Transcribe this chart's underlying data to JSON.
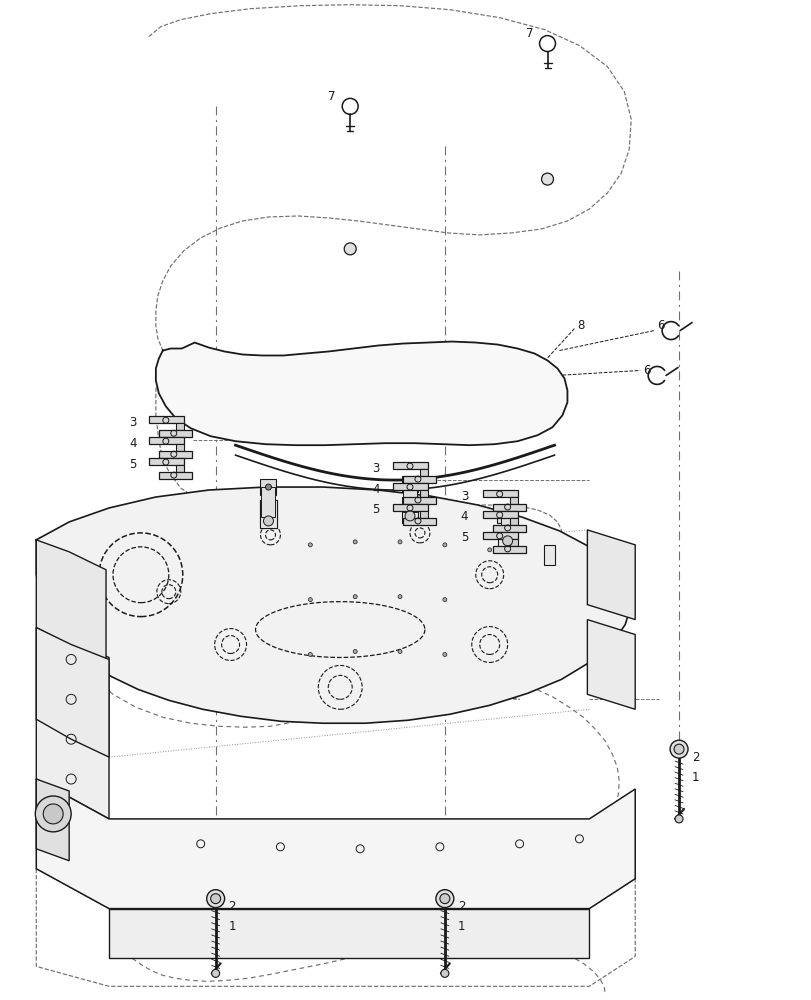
{
  "bg_color": "#ffffff",
  "lc": "#1a1a1a",
  "dc": "#707070",
  "dotc": "#909090",
  "fig_width": 8.12,
  "fig_height": 10.0,
  "dpi": 100
}
